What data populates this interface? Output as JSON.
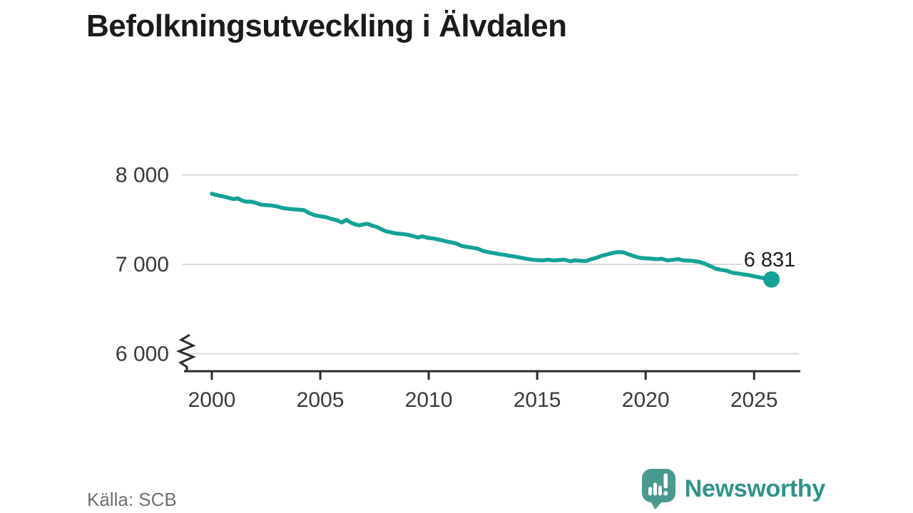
{
  "header": {
    "title": "Befolkningsutveckling i Älvdalen"
  },
  "footer": {
    "source": "Källa: SCB",
    "brand": "Newsworthy"
  },
  "colors": {
    "line": "#14a296",
    "grid": "#d9d9d9",
    "axis": "#2b2b2b",
    "tick_label": "#3a3a3a",
    "annotation": "#1c1c1c",
    "annotation_halo": "#ffffff",
    "logo_mark": "#489a8e",
    "logo_bars": "#ffffff",
    "logo_text": "#2f948a",
    "source_text": "#6f6f6f",
    "title_text": "#1b1b1b"
  },
  "chart_data": {
    "type": "line",
    "title": "Befolkningsutveckling i Älvdalen",
    "xlabel": "",
    "ylabel": "",
    "grid": true,
    "legend_position": "none",
    "y_axis_break": true,
    "xlim": [
      1998.62,
      2027.13
    ],
    "ylim": [
      6000,
      8000
    ],
    "yticks": [
      {
        "value": 8000,
        "label": "8 000"
      },
      {
        "value": 7000,
        "label": "7 000"
      },
      {
        "value": 6000,
        "label": "6 000"
      }
    ],
    "xticks": [
      {
        "value": 2000,
        "label": "2000"
      },
      {
        "value": 2005,
        "label": "2005"
      },
      {
        "value": 2010,
        "label": "2010"
      },
      {
        "value": 2015,
        "label": "2015"
      },
      {
        "value": 2020,
        "label": "2020"
      },
      {
        "value": 2025,
        "label": "2025"
      }
    ],
    "series": [
      {
        "name": "Befolkning",
        "points": [
          [
            2000.0,
            7790
          ],
          [
            2000.25,
            7772
          ],
          [
            2000.5,
            7760
          ],
          [
            2000.75,
            7745
          ],
          [
            2001.0,
            7730
          ],
          [
            2001.2,
            7738
          ],
          [
            2001.4,
            7712
          ],
          [
            2001.6,
            7700
          ],
          [
            2001.8,
            7702
          ],
          [
            2002.0,
            7690
          ],
          [
            2002.25,
            7668
          ],
          [
            2002.5,
            7662
          ],
          [
            2002.75,
            7658
          ],
          [
            2003.0,
            7648
          ],
          [
            2003.25,
            7630
          ],
          [
            2003.5,
            7622
          ],
          [
            2003.75,
            7616
          ],
          [
            2004.0,
            7612
          ],
          [
            2004.25,
            7606
          ],
          [
            2004.5,
            7572
          ],
          [
            2004.75,
            7548
          ],
          [
            2005.0,
            7538
          ],
          [
            2005.25,
            7528
          ],
          [
            2005.5,
            7508
          ],
          [
            2005.75,
            7495
          ],
          [
            2006.0,
            7468
          ],
          [
            2006.2,
            7498
          ],
          [
            2006.4,
            7468
          ],
          [
            2006.6,
            7448
          ],
          [
            2006.8,
            7436
          ],
          [
            2007.0,
            7448
          ],
          [
            2007.2,
            7452
          ],
          [
            2007.4,
            7432
          ],
          [
            2007.6,
            7418
          ],
          [
            2007.8,
            7395
          ],
          [
            2008.0,
            7372
          ],
          [
            2008.25,
            7358
          ],
          [
            2008.5,
            7345
          ],
          [
            2008.75,
            7340
          ],
          [
            2009.0,
            7332
          ],
          [
            2009.25,
            7318
          ],
          [
            2009.5,
            7300
          ],
          [
            2009.7,
            7314
          ],
          [
            2009.9,
            7300
          ],
          [
            2010.0,
            7296
          ],
          [
            2010.25,
            7288
          ],
          [
            2010.5,
            7274
          ],
          [
            2010.75,
            7260
          ],
          [
            2011.0,
            7248
          ],
          [
            2011.25,
            7235
          ],
          [
            2011.5,
            7208
          ],
          [
            2011.75,
            7195
          ],
          [
            2012.0,
            7186
          ],
          [
            2012.25,
            7176
          ],
          [
            2012.5,
            7150
          ],
          [
            2012.75,
            7136
          ],
          [
            2013.0,
            7126
          ],
          [
            2013.25,
            7114
          ],
          [
            2013.5,
            7106
          ],
          [
            2013.75,
            7094
          ],
          [
            2014.0,
            7086
          ],
          [
            2014.25,
            7074
          ],
          [
            2014.5,
            7062
          ],
          [
            2014.75,
            7052
          ],
          [
            2015.0,
            7048
          ],
          [
            2015.25,
            7044
          ],
          [
            2015.5,
            7052
          ],
          [
            2015.75,
            7044
          ],
          [
            2016.0,
            7048
          ],
          [
            2016.25,
            7052
          ],
          [
            2016.5,
            7036
          ],
          [
            2016.75,
            7044
          ],
          [
            2017.0,
            7040
          ],
          [
            2017.25,
            7036
          ],
          [
            2017.5,
            7058
          ],
          [
            2017.75,
            7074
          ],
          [
            2018.0,
            7098
          ],
          [
            2018.25,
            7112
          ],
          [
            2018.5,
            7128
          ],
          [
            2018.75,
            7138
          ],
          [
            2019.0,
            7132
          ],
          [
            2019.25,
            7108
          ],
          [
            2019.5,
            7090
          ],
          [
            2019.75,
            7072
          ],
          [
            2020.0,
            7068
          ],
          [
            2020.25,
            7064
          ],
          [
            2020.5,
            7058
          ],
          [
            2020.75,
            7062
          ],
          [
            2021.0,
            7044
          ],
          [
            2021.25,
            7050
          ],
          [
            2021.5,
            7058
          ],
          [
            2021.75,
            7044
          ],
          [
            2022.0,
            7042
          ],
          [
            2022.25,
            7036
          ],
          [
            2022.5,
            7026
          ],
          [
            2022.75,
            7004
          ],
          [
            2023.0,
            6978
          ],
          [
            2023.25,
            6950
          ],
          [
            2023.5,
            6938
          ],
          [
            2023.75,
            6928
          ],
          [
            2024.0,
            6906
          ],
          [
            2024.25,
            6898
          ],
          [
            2024.5,
            6888
          ],
          [
            2024.75,
            6880
          ],
          [
            2025.0,
            6866
          ],
          [
            2025.3,
            6852
          ],
          [
            2025.55,
            6842
          ],
          [
            2025.8,
            6831
          ]
        ]
      }
    ],
    "end_point": {
      "x": 2025.8,
      "y": 6831,
      "label": "6 831"
    }
  }
}
